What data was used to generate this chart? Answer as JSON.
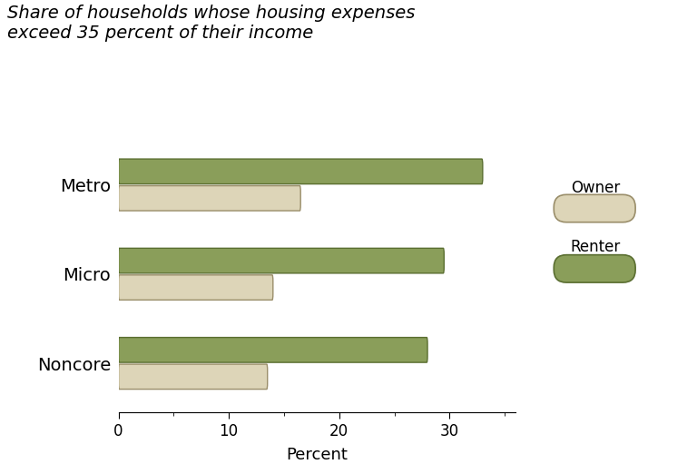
{
  "categories": [
    "Metro",
    "Micro",
    "Noncore"
  ],
  "renter_values": [
    33.0,
    29.5,
    28.0
  ],
  "owner_values": [
    16.5,
    14.0,
    13.5
  ],
  "renter_color": "#8a9e5a",
  "owner_color": "#ddd5b8",
  "renter_edge_color": "#5a6e30",
  "owner_edge_color": "#9a8e6a",
  "title_line1": "Share of households whose housing expenses",
  "title_line2": "exceed 35 percent of their income",
  "xlabel": "Percent",
  "xlim": [
    0,
    36
  ],
  "xticks": [
    0,
    10,
    20,
    30
  ],
  "background_color": "#ffffff",
  "legend_owner_label": "Owner",
  "legend_renter_label": "Renter",
  "title_fontsize": 14,
  "axis_fontsize": 13,
  "tick_fontsize": 12,
  "label_fontsize": 14,
  "legend_fontsize": 12,
  "bar_height": 0.28,
  "bar_gap": 0.01
}
